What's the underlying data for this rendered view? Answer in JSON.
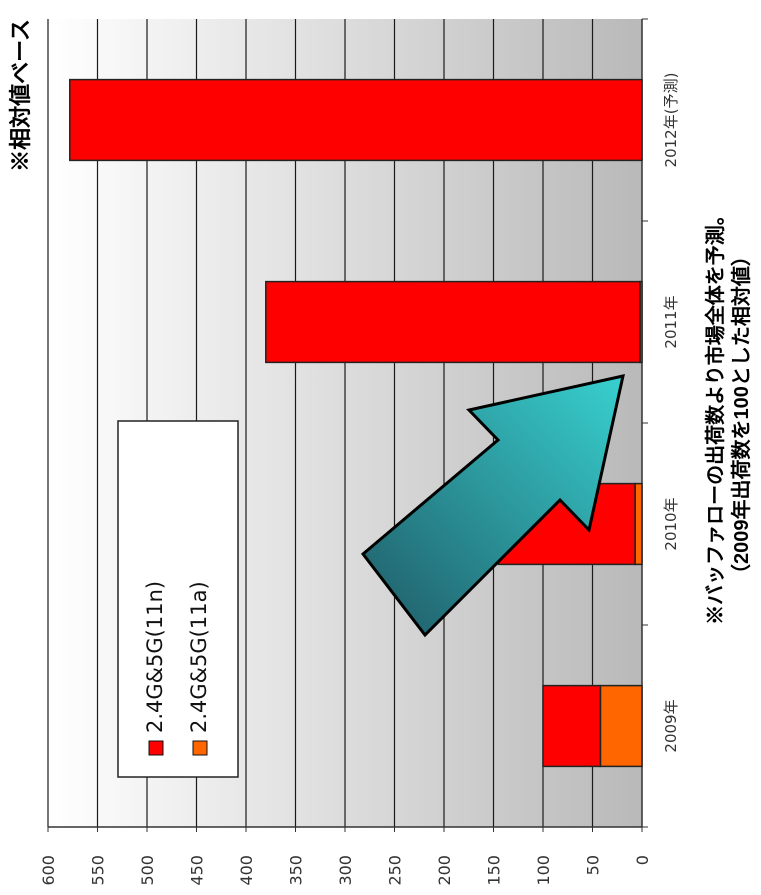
{
  "chart_data": {
    "type": "bar",
    "stacked": true,
    "categories": [
      "2009年",
      "2010年",
      "2011年",
      "2012年(予測)"
    ],
    "series": [
      {
        "name": "2.4G&5G(11a)",
        "values": [
          42,
          7,
          2,
          0
        ],
        "color": "#ff6600"
      },
      {
        "name": "2.4G&5G(11n)",
        "values": [
          58,
          138,
          378,
          578
        ],
        "color": "#ff0000"
      }
    ],
    "yticks": [
      "0",
      "50",
      "100",
      "150",
      "200",
      "250",
      "300",
      "350",
      "400",
      "450",
      "500",
      "550",
      "600"
    ],
    "ylim": [
      0,
      600
    ],
    "legend_position": "upper-left",
    "grid": true,
    "annotations": {
      "top_note": "※相対値ベース",
      "bottom_note_line1": "※バッファローの出荷数より市場全体を予測。",
      "bottom_note_line2": "（2009年出荷数を100とした相対値）"
    },
    "arrow_color": "#2ab5b5"
  }
}
